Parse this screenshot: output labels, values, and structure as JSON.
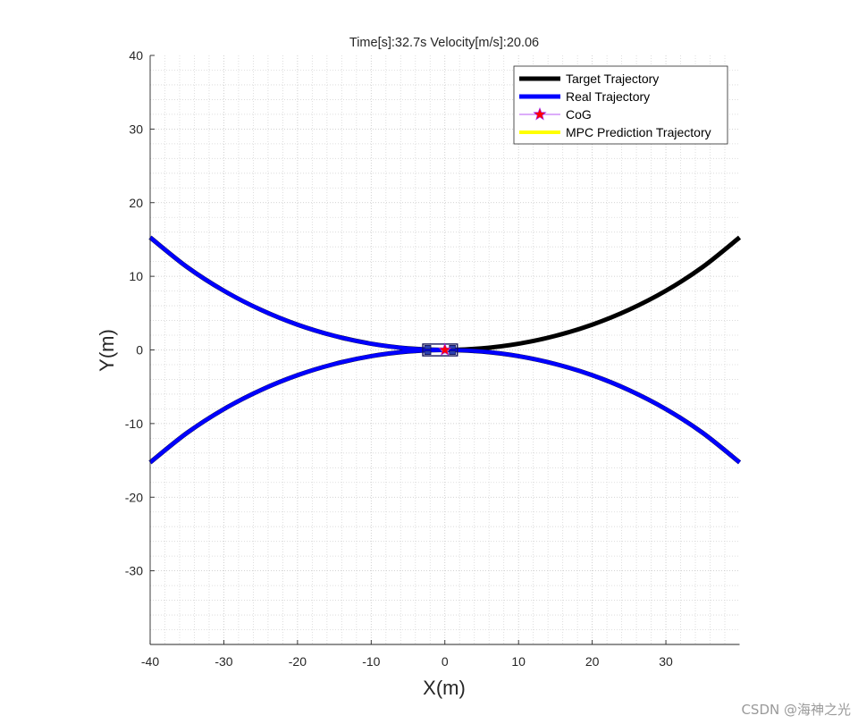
{
  "chart_data": {
    "type": "line",
    "title": "Time[s]:32.7s Velocity[m/s]:20.06",
    "xlabel": "X(m)",
    "ylabel": "Y(m)",
    "xlim": [
      -40,
      40
    ],
    "ylim": [
      -40,
      40
    ],
    "xticks": [
      -40,
      -30,
      -20,
      -10,
      0,
      10,
      20,
      30
    ],
    "xtick_labels": [
      "-40",
      "-30",
      "-20",
      "-10",
      "0",
      "10",
      "20",
      "30"
    ],
    "yticks": [
      -30,
      -20,
      -10,
      0,
      10,
      20,
      30,
      40
    ],
    "ytick_labels": [
      "-30",
      "-20",
      "-10",
      "0",
      "10",
      "20",
      "30",
      "40"
    ],
    "grid": "on",
    "minor_grid_step": 2,
    "legend_position": "top-right",
    "series": [
      {
        "name": "Target Trajectory",
        "color": "#000000",
        "paths": [
          {
            "x": [
              -40,
              -35,
              -30,
              -25,
              -20,
              -15,
              -10,
              -5,
              0,
              5,
              10,
              15,
              20,
              25,
              30,
              35,
              40
            ],
            "y": [
              15.28,
              11.27,
              8.04,
              5.46,
              3.43,
              1.91,
              0.84,
              0.21,
              0,
              0.21,
              0.84,
              1.91,
              3.43,
              5.46,
              8.04,
              11.27,
              15.28
            ]
          },
          {
            "x": [
              -40,
              -35,
              -30,
              -25,
              -20,
              -15,
              -10,
              -5,
              0,
              5,
              10,
              15,
              20,
              25,
              30,
              35,
              40
            ],
            "y": [
              -15.28,
              -11.27,
              -8.04,
              -5.46,
              -3.43,
              -1.91,
              -0.84,
              -0.21,
              0,
              -0.21,
              -0.84,
              -1.91,
              -3.43,
              -5.46,
              -8.04,
              -11.27,
              -15.28
            ]
          }
        ]
      },
      {
        "name": "Real Trajectory",
        "color": "#0000ff",
        "paths": [
          {
            "x": [
              -40,
              -35,
              -30,
              -25,
              -20,
              -15,
              -10,
              -5,
              0
            ],
            "y": [
              15.28,
              11.27,
              8.04,
              5.46,
              3.43,
              1.91,
              0.84,
              0.21,
              0
            ]
          },
          {
            "x": [
              -40,
              -35,
              -30,
              -25,
              -20,
              -15,
              -10,
              -5,
              0,
              5,
              10,
              15,
              20,
              25,
              30,
              35,
              40
            ],
            "y": [
              -15.28,
              -11.27,
              -8.04,
              -5.46,
              -3.43,
              -1.91,
              -0.84,
              -0.21,
              0,
              -0.21,
              -0.84,
              -1.91,
              -3.43,
              -5.46,
              -8.04,
              -11.27,
              -15.28
            ]
          }
        ]
      },
      {
        "name": "CoG",
        "color": "#ff0000",
        "edge_color": "#a020f0",
        "marker": "star",
        "x": [
          0
        ],
        "y": [
          0
        ]
      },
      {
        "name": "MPC Prediction Trajectory",
        "color": "#ffff00",
        "x": [
          -0.5,
          0.5
        ],
        "y": [
          0,
          0
        ]
      }
    ],
    "vehicle": {
      "x": [
        -3,
        1.7
      ],
      "y": [
        -0.8,
        0.8
      ],
      "color": "#14145a",
      "wheel_color": "#2a3fb0"
    }
  },
  "watermark": "CSDN @海神之光"
}
